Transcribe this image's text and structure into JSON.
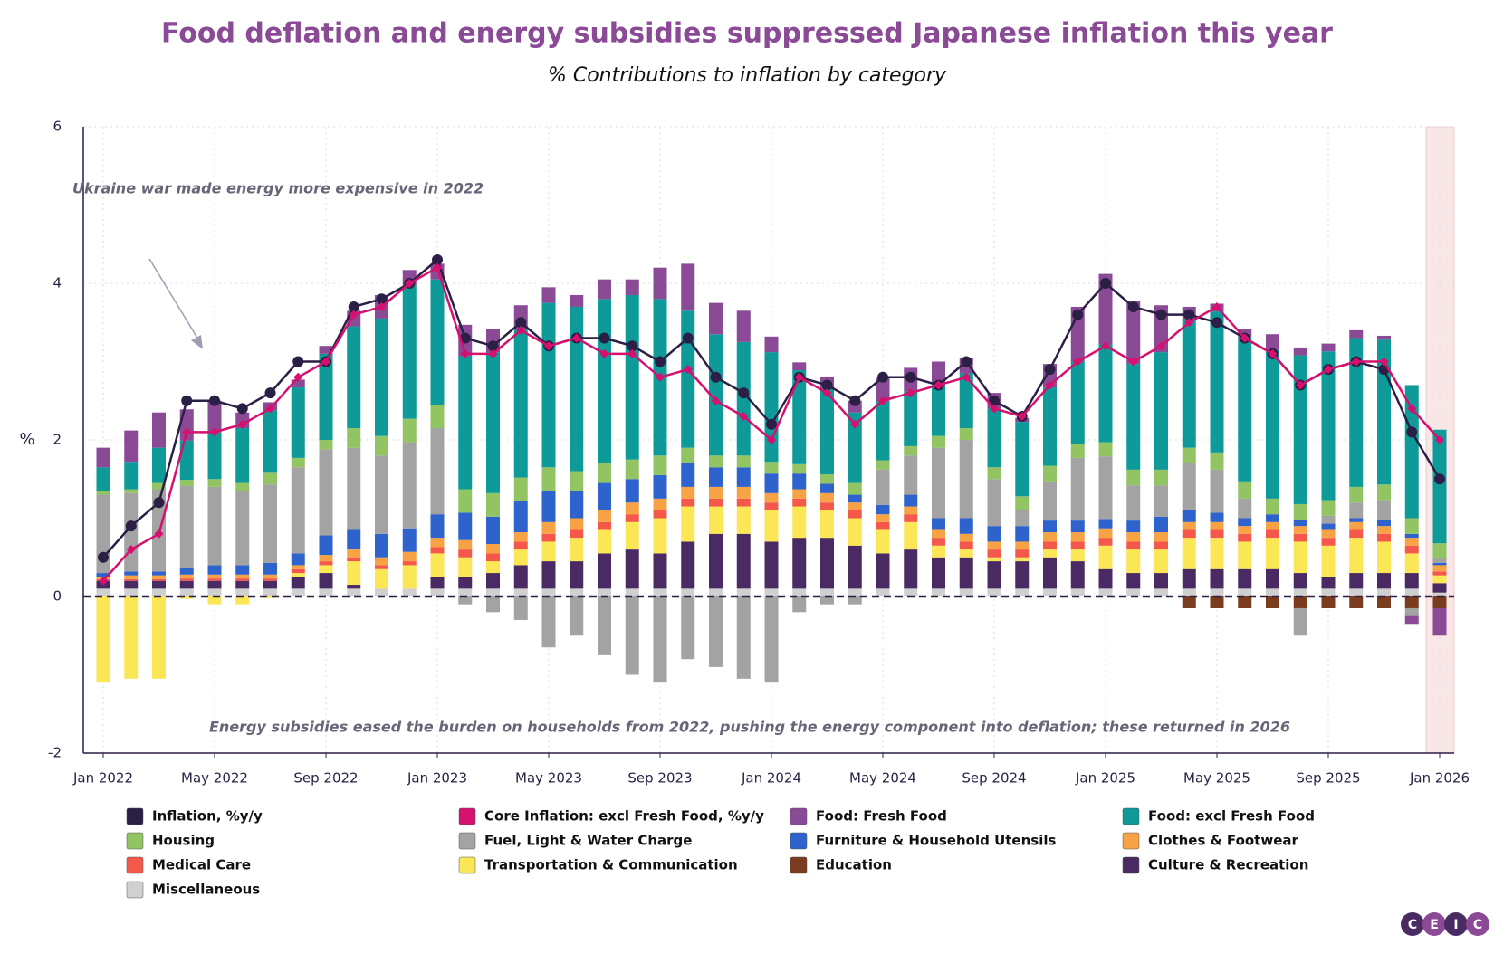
{
  "chart_data": {
    "type": "bar",
    "title": "Food deflation and energy subsidies suppressed Japanese inflation this year",
    "subtitle": "% Contributions to inflation by category",
    "y_label": "%",
    "annotations": [
      "Ukraine war made energy more expensive in 2022",
      "Energy subsidies eased the burden on households from 2022, pushing the energy component into deflation; these returned in 2026"
    ],
    "logo": [
      "C",
      "E",
      "I",
      "C"
    ],
    "stacked": true,
    "ylim": [
      -2,
      6
    ],
    "yticks": [
      -2,
      0,
      2,
      4,
      6
    ],
    "grid": true,
    "legend": "bottom",
    "categories": [
      "Jan 2022",
      null,
      null,
      null,
      "May 2022",
      null,
      null,
      null,
      "Sep 2022",
      null,
      null,
      null,
      "Jan 2023",
      null,
      null,
      null,
      "May 2023",
      null,
      null,
      null,
      "Sep 2023",
      null,
      null,
      null,
      "Jan 2024",
      null,
      null,
      null,
      "May 2024",
      null,
      null,
      null,
      "Sep 2024",
      null,
      null,
      null,
      "Jan 2025",
      null,
      null,
      null,
      "May 2025",
      null,
      null,
      null,
      "Sep 2025",
      null,
      null,
      null,
      "Jan 2026"
    ],
    "series": [
      {
        "name": "Inflation, %y/y",
        "type": "line",
        "color": "#2b1f45",
        "values": [
          0.5,
          0.9,
          1.2,
          2.5,
          2.5,
          2.4,
          2.6,
          3.0,
          3.0,
          3.7,
          3.8,
          4.0,
          4.3,
          3.3,
          3.2,
          3.5,
          3.2,
          3.3,
          3.3,
          3.2,
          3.0,
          3.3,
          2.8,
          2.6,
          2.2,
          2.8,
          2.7,
          2.5,
          2.8,
          2.8,
          2.7,
          3.0,
          2.5,
          2.3,
          2.9,
          3.6,
          4.0,
          3.7,
          3.6,
          3.6,
          3.5,
          3.3,
          3.1,
          2.7,
          2.9,
          3.0,
          2.9,
          2.1,
          1.5
        ]
      },
      {
        "name": "Core Inflation: excl Fresh Food, %y/y",
        "type": "line",
        "color": "#d6106f",
        "values": [
          0.2,
          0.6,
          0.8,
          2.1,
          2.1,
          2.2,
          2.4,
          2.8,
          3.0,
          3.6,
          3.7,
          4.0,
          4.2,
          3.1,
          3.1,
          3.4,
          3.2,
          3.3,
          3.1,
          3.1,
          2.8,
          2.9,
          2.5,
          2.3,
          2.0,
          2.8,
          2.6,
          2.2,
          2.5,
          2.6,
          2.7,
          2.8,
          2.4,
          2.3,
          2.7,
          3.0,
          3.2,
          3.0,
          3.2,
          3.5,
          3.7,
          3.3,
          3.1,
          2.7,
          2.9,
          3.0,
          3.0,
          2.4,
          2.0
        ]
      },
      {
        "name": "Food: Fresh Food",
        "color": "#8a4a96",
        "values": [
          0.25,
          0.4,
          0.45,
          0.4,
          0.4,
          0.2,
          0.1,
          0.1,
          0.1,
          0.2,
          0.3,
          0.2,
          0.2,
          0.4,
          0.3,
          0.3,
          0.2,
          0.15,
          0.25,
          0.2,
          0.4,
          0.6,
          0.4,
          0.4,
          0.2,
          0.1,
          0.15,
          0.15,
          0.3,
          0.3,
          0.3,
          0.2,
          0.2,
          0.05,
          0.3,
          0.7,
          0.9,
          0.8,
          0.6,
          0.15,
          0.1,
          0.1,
          0.2,
          0.1,
          0.1,
          0.1,
          0.05,
          -0.1,
          -0.35
        ]
      },
      {
        "name": "Food: excl Fresh Food",
        "color": "#0d9a98",
        "values": [
          0.3,
          0.35,
          0.45,
          0.5,
          0.6,
          0.7,
          0.8,
          0.9,
          1.1,
          1.3,
          1.5,
          1.7,
          1.6,
          1.7,
          1.8,
          1.9,
          2.1,
          2.1,
          2.1,
          2.1,
          2.0,
          1.75,
          1.55,
          1.45,
          1.4,
          1.2,
          1.1,
          0.9,
          0.75,
          0.7,
          0.65,
          0.7,
          0.75,
          0.95,
          1.0,
          1.05,
          1.25,
          1.35,
          1.5,
          1.65,
          1.8,
          1.85,
          1.9,
          1.9,
          1.9,
          1.9,
          1.85,
          1.7,
          1.45
        ]
      },
      {
        "name": "Housing",
        "color": "#93c463",
        "values": [
          0.05,
          0.05,
          0.08,
          0.08,
          0.1,
          0.1,
          0.15,
          0.12,
          0.12,
          0.25,
          0.25,
          0.3,
          0.3,
          0.3,
          0.3,
          0.3,
          0.3,
          0.25,
          0.25,
          0.25,
          0.25,
          0.2,
          0.15,
          0.15,
          0.15,
          0.12,
          0.12,
          0.15,
          0.12,
          0.12,
          0.15,
          0.15,
          0.15,
          0.18,
          0.2,
          0.18,
          0.18,
          0.2,
          0.2,
          0.2,
          0.22,
          0.22,
          0.2,
          0.2,
          0.2,
          0.2,
          0.2,
          0.2,
          0.2
        ]
      },
      {
        "name": "Fuel, Light & Water Charge",
        "color": "#a3a3a3",
        "values": [
          1.0,
          1.0,
          1.05,
          1.05,
          1.0,
          0.95,
          1.0,
          1.1,
          1.1,
          1.05,
          1.0,
          1.1,
          1.1,
          -0.1,
          -0.2,
          -0.3,
          -0.65,
          -0.5,
          -0.75,
          -1.0,
          -1.1,
          -0.8,
          -0.9,
          -1.05,
          -1.1,
          -0.2,
          -0.1,
          -0.1,
          0.45,
          0.5,
          0.9,
          1.0,
          0.6,
          0.2,
          0.5,
          0.8,
          0.8,
          0.45,
          0.4,
          0.6,
          0.55,
          0.25,
          0.0,
          -0.35,
          0.1,
          0.2,
          0.25,
          -0.1,
          0.05
        ]
      },
      {
        "name": "Furniture & Household Utensils",
        "color": "#2e62cc",
        "values": [
          0.05,
          0.05,
          0.05,
          0.08,
          0.12,
          0.12,
          0.15,
          0.15,
          0.25,
          0.25,
          0.3,
          0.3,
          0.3,
          0.35,
          0.35,
          0.4,
          0.4,
          0.35,
          0.35,
          0.3,
          0.3,
          0.3,
          0.25,
          0.25,
          0.25,
          0.2,
          0.12,
          0.1,
          0.12,
          0.15,
          0.15,
          0.2,
          0.2,
          0.2,
          0.15,
          0.15,
          0.12,
          0.15,
          0.2,
          0.15,
          0.12,
          0.1,
          0.1,
          0.08,
          0.08,
          0.05,
          0.08,
          0.05,
          0.03
        ]
      },
      {
        "name": "Clothes & Footwear",
        "color": "#f7a345",
        "values": [
          0.03,
          0.05,
          0.05,
          0.05,
          0.05,
          0.05,
          0.05,
          0.05,
          0.08,
          0.1,
          0.1,
          0.12,
          0.12,
          0.12,
          0.12,
          0.12,
          0.15,
          0.15,
          0.15,
          0.15,
          0.15,
          0.15,
          0.15,
          0.15,
          0.12,
          0.12,
          0.12,
          0.1,
          0.1,
          0.1,
          0.1,
          0.1,
          0.1,
          0.1,
          0.12,
          0.12,
          0.12,
          0.12,
          0.12,
          0.1,
          0.1,
          0.1,
          0.1,
          0.1,
          0.1,
          0.1,
          0.1,
          0.1,
          0.08
        ]
      },
      {
        "name": "Medical Care",
        "color": "#f4584a",
        "values": [
          0.02,
          0.02,
          0.02,
          0.03,
          0.03,
          0.03,
          0.03,
          0.05,
          0.05,
          0.05,
          0.05,
          0.05,
          0.08,
          0.1,
          0.1,
          0.1,
          0.1,
          0.1,
          0.1,
          0.1,
          0.1,
          0.1,
          0.1,
          0.1,
          0.1,
          0.1,
          0.1,
          0.1,
          0.1,
          0.1,
          0.1,
          0.1,
          0.1,
          0.1,
          0.1,
          0.1,
          0.1,
          0.1,
          0.1,
          0.1,
          0.1,
          0.1,
          0.1,
          0.1,
          0.1,
          0.1,
          0.1,
          0.1,
          0.05
        ]
      },
      {
        "name": "Transportation & Communication",
        "color": "#fbe655",
        "values": [
          -1.1,
          -1.05,
          -1.05,
          -0.03,
          -0.1,
          -0.1,
          -0.02,
          0.05,
          0.1,
          0.3,
          0.25,
          0.3,
          0.3,
          0.25,
          0.15,
          0.2,
          0.25,
          0.3,
          0.3,
          0.35,
          0.45,
          0.45,
          0.35,
          0.35,
          0.4,
          0.4,
          0.35,
          0.35,
          0.3,
          0.35,
          0.15,
          0.1,
          0.05,
          0.05,
          0.1,
          0.15,
          0.3,
          0.3,
          0.3,
          0.4,
          0.4,
          0.35,
          0.4,
          0.4,
          0.4,
          0.45,
          0.4,
          0.25,
          0.1
        ]
      },
      {
        "name": "Education",
        "color": "#7a3b1e",
        "values": [
          0,
          0,
          0,
          0,
          0,
          0,
          0,
          0,
          0,
          0,
          0,
          0,
          0,
          0,
          0,
          0,
          0,
          0,
          0,
          0,
          0,
          0,
          0,
          0,
          0,
          0,
          0,
          0,
          0,
          0,
          0,
          0,
          0,
          0,
          0,
          0,
          0,
          0,
          0,
          -0.15,
          -0.15,
          -0.15,
          -0.15,
          -0.15,
          -0.15,
          -0.15,
          -0.15,
          -0.15,
          -0.15
        ]
      },
      {
        "name": "Culture & Recreation",
        "color": "#4a2a63",
        "values": [
          0.1,
          0.1,
          0.1,
          0.1,
          0.1,
          0.1,
          0.1,
          0.15,
          0.2,
          0.05,
          0.0,
          0.0,
          0.15,
          0.15,
          0.2,
          0.3,
          0.35,
          0.35,
          0.45,
          0.5,
          0.45,
          0.6,
          0.7,
          0.7,
          0.6,
          0.65,
          0.65,
          0.55,
          0.45,
          0.5,
          0.4,
          0.4,
          0.35,
          0.35,
          0.4,
          0.35,
          0.25,
          0.2,
          0.2,
          0.25,
          0.25,
          0.25,
          0.25,
          0.2,
          0.15,
          0.2,
          0.2,
          0.2,
          0.12
        ]
      },
      {
        "name": "Miscellaneous",
        "color": "#d0d0d0",
        "values": [
          0.1,
          0.1,
          0.1,
          0.1,
          0.1,
          0.1,
          0.1,
          0.1,
          0.1,
          0.1,
          0.1,
          0.1,
          0.1,
          0.1,
          0.1,
          0.1,
          0.1,
          0.1,
          0.1,
          0.1,
          0.1,
          0.1,
          0.1,
          0.1,
          0.1,
          0.1,
          0.1,
          0.1,
          0.1,
          0.1,
          0.1,
          0.1,
          0.1,
          0.1,
          0.1,
          0.1,
          0.1,
          0.1,
          0.1,
          0.1,
          0.1,
          0.1,
          0.1,
          0.1,
          0.1,
          0.1,
          0.1,
          0.1,
          0.05
        ]
      }
    ]
  }
}
